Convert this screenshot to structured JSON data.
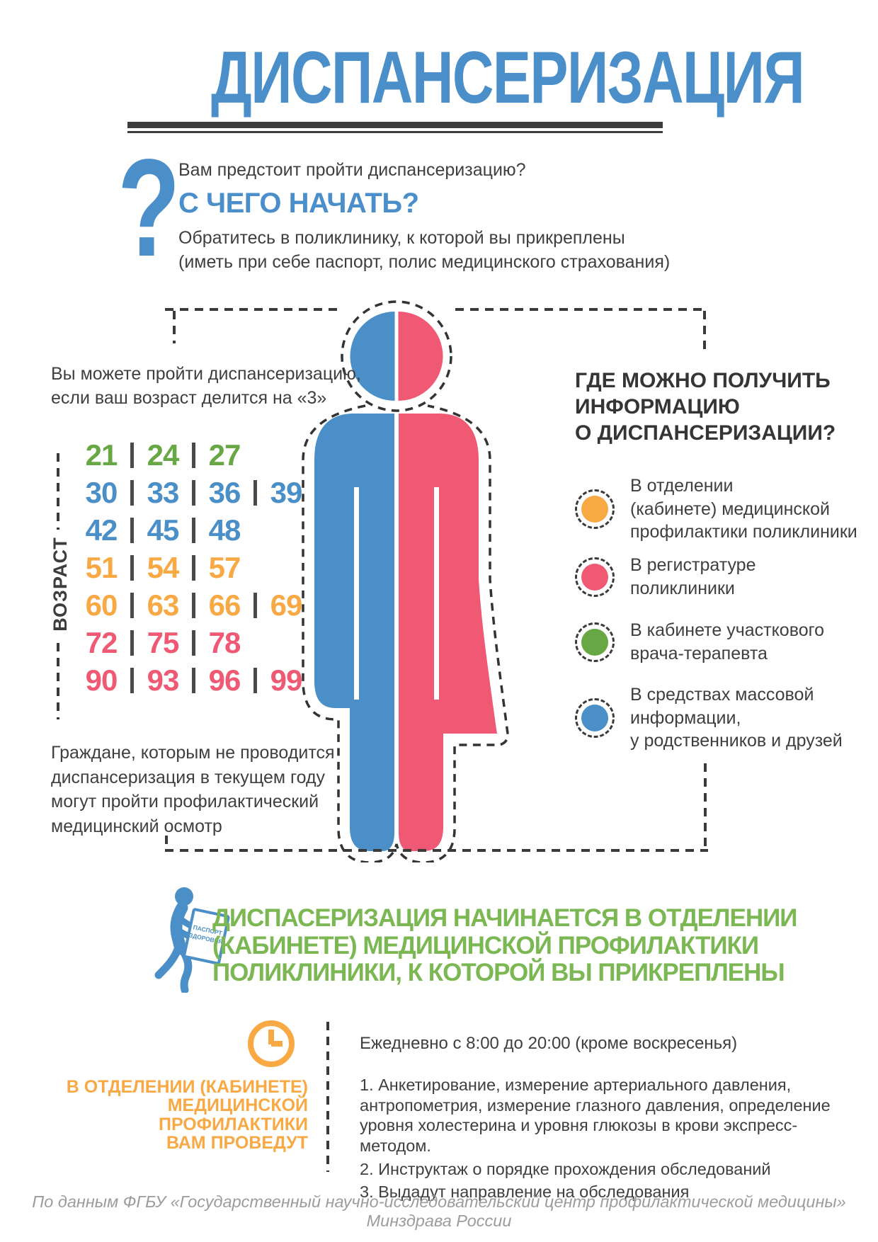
{
  "colors": {
    "blue": "#4A8FC7",
    "pink": "#EF5974",
    "green": "#67A744",
    "green_banner": "#7BB752",
    "orange": "#F8A944",
    "dark": "#3D3D3D",
    "gray": "#9C9C9C"
  },
  "icons": {
    "question_mark": "question-mark-icon",
    "clock": "clock-icon",
    "walking_person": "walking-person-with-document-icon",
    "half_man_half_woman": "man-woman-silhouette-icon"
  },
  "page": {
    "title": "ДИСПАНСЕРИЗАЦИЯ",
    "footer": "По данным ФГБУ «Государственный научно-исследовательский центр профилактической медицины» Минздрава России"
  },
  "intro": {
    "question_mark": "?",
    "line1": "Вам предстоит пройти диспансеризацию?",
    "heading": "С ЧЕГО НАЧАТЬ?",
    "line2": "Обратитесь в поликлинику, к которой вы прикреплены\n(иметь при себе паспорт, полис медицинского страхования)"
  },
  "age_section": {
    "intro": "Вы можете пройти диспансеризацию,\nесли ваш возраст делится на «3»",
    "axis_label": "ВОЗРАСТ",
    "rows": [
      {
        "color": "green",
        "values": [
          "21",
          "24",
          "27"
        ]
      },
      {
        "color": "blue",
        "values": [
          "30",
          "33",
          "36",
          "39"
        ]
      },
      {
        "color": "blue",
        "values": [
          "42",
          "45",
          "48"
        ]
      },
      {
        "color": "orange",
        "values": [
          "51",
          "54",
          "57"
        ]
      },
      {
        "color": "orange",
        "values": [
          "60",
          "63",
          "66",
          "69"
        ]
      },
      {
        "color": "pink",
        "values": [
          "72",
          "75",
          "78"
        ]
      },
      {
        "color": "pink",
        "values": [
          "90",
          "93",
          "96",
          "99"
        ]
      }
    ],
    "note": "Граждане, которым не проводится\nдиспансеризация в текущем году\nмогут пройти профилактический\nмедицинский осмотр"
  },
  "info_section": {
    "heading": "ГДЕ МОЖНО ПОЛУЧИТЬ\nИНФОРМАЦИЮ\nО ДИСПАНСЕРИЗАЦИИ?",
    "items": [
      {
        "color": "orange",
        "text": "В отделении\n(кабинете) медицинской\nпрофилактики поликлиники"
      },
      {
        "color": "pink",
        "text": "В регистратуре\nполиклиники"
      },
      {
        "color": "green",
        "text": "В кабинете участкового\nврача-терапевта"
      },
      {
        "color": "blue",
        "text": "В средствах массовой\nинформации,\nу родственников и друзей"
      }
    ]
  },
  "start_banner": {
    "document_label": "ПАСПОРТ\nЗДОРОВЬЯ",
    "text": "ДИСПАСЕРИЗАЦИЯ НАЧИНАЕТСЯ В ОТДЕЛЕНИИ\n(КАБИНЕТЕ) МЕДИЦИНСКОЙ ПРОФИЛАКТИКИ\nПОЛИКЛИНИКИ, К КОТОРОЙ ВЫ ПРИКРЕПЛЕНЫ"
  },
  "schedule_section": {
    "left_title": "В ОТДЕЛЕНИИ  (КАБИНЕТЕ)\nМЕДИЦИНСКОЙ\nПРОФИЛАКТИКИ\nВАМ ПРОВЕДУТ",
    "hours": "Ежедневно с 8:00 до 20:00 (кроме воскресенья)",
    "steps": [
      "1. Анкетирование, измерение артериального давления, антропометрия, измерение глазного давления, определение уровня холестерина и уровня глюкозы в крови экспресс-методом.",
      "2. Инструктаж о порядке прохождения обследований",
      "3. Выдадут направление на обследования"
    ]
  }
}
